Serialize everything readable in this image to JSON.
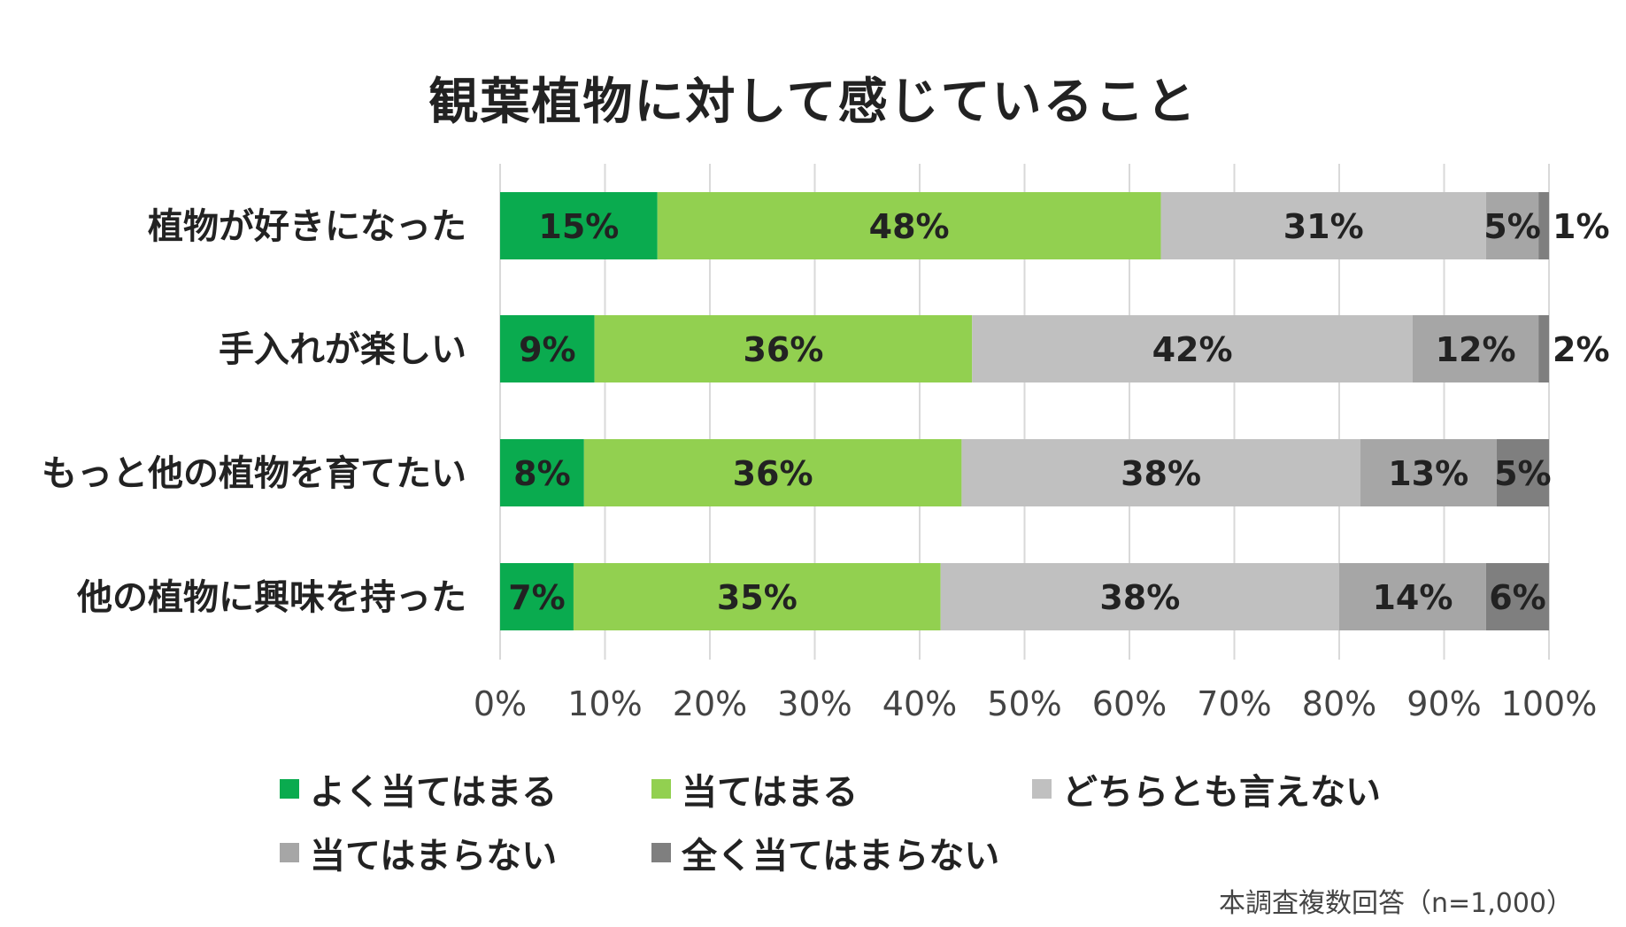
{
  "chart_data": {
    "type": "bar",
    "orientation": "horizontal",
    "stacked": true,
    "title": "観葉植物に対して感じていること",
    "categories": [
      "植物が好きになった",
      "手入れが楽しい",
      "もっと他の植物を育てたい",
      "他の植物に興味を持った"
    ],
    "series": [
      {
        "name": "よく当てはまる",
        "color": "#0aab4f",
        "values": [
          15,
          9,
          8,
          7
        ],
        "labels": [
          "15%",
          "9%",
          "8%",
          "7%"
        ]
      },
      {
        "name": "当てはまる",
        "color": "#92d050",
        "values": [
          48,
          36,
          36,
          35
        ],
        "labels": [
          "48%",
          "36%",
          "36%",
          "35%"
        ]
      },
      {
        "name": "どちらとも言えない",
        "color": "#c0c0c0",
        "values": [
          31,
          42,
          38,
          38
        ],
        "labels": [
          "31%",
          "42%",
          "38%",
          "38%"
        ]
      },
      {
        "name": "当てはまらない",
        "color": "#a6a6a6",
        "values": [
          5,
          12,
          13,
          14
        ],
        "labels": [
          "5%",
          "12%",
          "13%",
          "14%"
        ]
      },
      {
        "name": "全く当てはまらない",
        "color": "#7f7f7f",
        "values": [
          1,
          2,
          5,
          6
        ],
        "labels": [
          "1%",
          "2%",
          "5%",
          "6%"
        ]
      }
    ],
    "xlim": [
      0,
      100
    ],
    "xticks": [
      "0%",
      "10%",
      "20%",
      "30%",
      "40%",
      "50%",
      "60%",
      "70%",
      "80%",
      "90%",
      "100%"
    ],
    "grid": true,
    "legend_position": "bottom"
  },
  "footnote": "本調査複数回答（n=1,000）"
}
